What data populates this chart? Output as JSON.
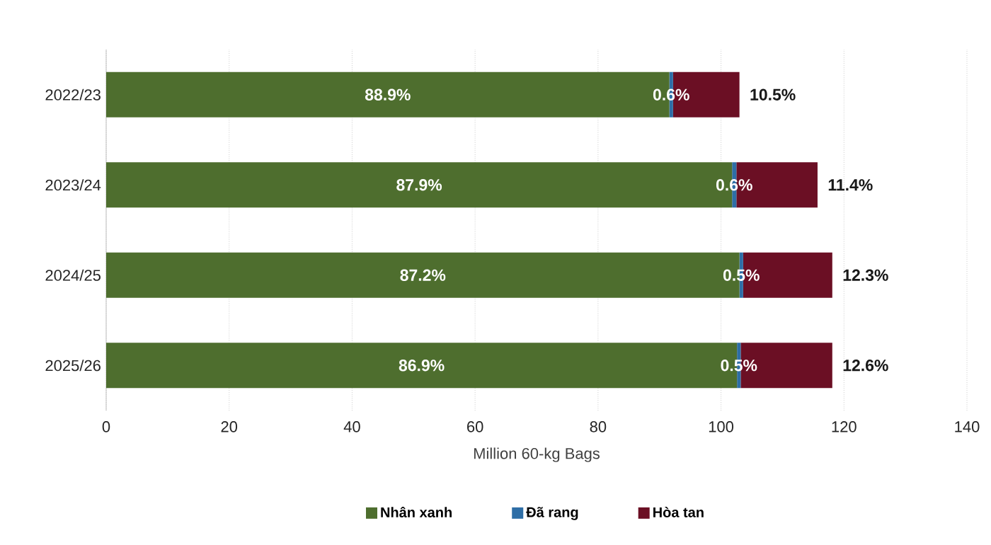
{
  "chart_data": {
    "type": "bar",
    "orientation": "horizontal",
    "stacked": true,
    "categories": [
      "2022/23",
      "2023/24",
      "2024/25",
      "2025/26"
    ],
    "series": [
      {
        "name": "Nhân xanh",
        "color": "#4e6e2e",
        "values": [
          91.6,
          101.8,
          103.0,
          102.6
        ]
      },
      {
        "name": "Đã rang",
        "color": "#2e6ea6",
        "values": [
          0.6,
          0.7,
          0.6,
          0.6
        ]
      },
      {
        "name": "Hòa tan",
        "color": "#6b0f24",
        "values": [
          10.8,
          13.2,
          14.5,
          14.9
        ]
      }
    ],
    "annotations": [
      "88.9%",
      "87.9%",
      "87.2%",
      "86.9%",
      {
        "text": "0.6%",
        "x": 92.2,
        "y": "2022/23"
      },
      {
        "text": "0.6%",
        "x": 102.5,
        "y": "2023/24"
      },
      {
        "text": "0.5%",
        "x": 103.6,
        "y": "2024/25"
      },
      {
        "text": "0.5%",
        "x": 103.2,
        "y": "2025/26"
      },
      {
        "text": "10.5%",
        "x": 103.0,
        "y": "2022/23"
      },
      {
        "text": "11.4%",
        "x": 115.7,
        "y": "2023/24"
      },
      {
        "text": "12.3%",
        "x": 118.1,
        "y": "2024/25"
      },
      {
        "text": "12.6%",
        "x": 118.1,
        "y": "2025/26"
      }
    ],
    "xlabel": "Million 60-kg Bags",
    "xlim": [
      0,
      140
    ],
    "xticks": [
      0,
      20,
      40,
      60,
      80,
      100,
      120,
      140
    ],
    "grid": "x",
    "legend": "bottom"
  }
}
